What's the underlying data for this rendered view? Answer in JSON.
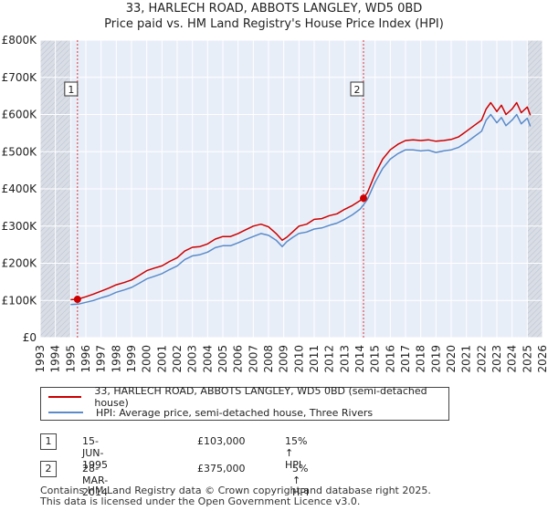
{
  "title_line1": "33, HARLECH ROAD, ABBOTS LANGLEY, WD5 0BD",
  "title_line2": "Price paid vs. HM Land Registry's House Price Index (HPI)",
  "chart_data": {
    "type": "line",
    "title": "33, HARLECH ROAD, ABBOTS LANGLEY, WD5 0BD — Price paid vs. HM Land Registry's House Price Index (HPI)",
    "xlabel": "",
    "ylabel": "",
    "xlim": [
      1993,
      2026
    ],
    "ylim": [
      0,
      800000
    ],
    "x_ticks": [
      1993,
      1994,
      1995,
      1996,
      1997,
      1998,
      1999,
      2000,
      2001,
      2002,
      2003,
      2004,
      2005,
      2006,
      2007,
      2008,
      2009,
      2010,
      2011,
      2012,
      2013,
      2014,
      2015,
      2016,
      2017,
      2018,
      2019,
      2020,
      2021,
      2022,
      2023,
      2024,
      2025,
      2026
    ],
    "y_ticks": [
      0,
      100000,
      200000,
      300000,
      400000,
      500000,
      600000,
      700000,
      800000
    ],
    "y_tick_labels": [
      "£0",
      "£100K",
      "£200K",
      "£300K",
      "£400K",
      "£500K",
      "£600K",
      "£700K",
      "£800K"
    ],
    "grid": true,
    "shaded_ranges": [
      [
        1993,
        1995.0
      ],
      [
        2025.0,
        2026
      ]
    ],
    "series": [
      {
        "name": "33, HARLECH ROAD, ABBOTS LANGLEY, WD5 0BD (semi-detached house)",
        "color": "#cc0000",
        "x": [
          1995.0,
          1995.45,
          1996.0,
          1996.5,
          1997.0,
          1997.5,
          1998.0,
          1998.5,
          1999.0,
          1999.5,
          2000.0,
          2000.5,
          2001.0,
          2001.5,
          2002.0,
          2002.5,
          2003.0,
          2003.5,
          2004.0,
          2004.5,
          2005.0,
          2005.5,
          2006.0,
          2006.5,
          2007.0,
          2007.5,
          2008.0,
          2008.5,
          2008.9,
          2009.2,
          2009.6,
          2010.0,
          2010.5,
          2011.0,
          2011.5,
          2012.0,
          2012.5,
          2013.0,
          2013.5,
          2014.0,
          2014.24,
          2014.5,
          2015.0,
          2015.5,
          2016.0,
          2016.5,
          2017.0,
          2017.5,
          2018.0,
          2018.5,
          2019.0,
          2019.5,
          2020.0,
          2020.5,
          2021.0,
          2021.5,
          2022.0,
          2022.3,
          2022.6,
          2023.0,
          2023.3,
          2023.6,
          2024.0,
          2024.3,
          2024.6,
          2025.0,
          2025.2
        ],
        "values": [
          102000,
          103000,
          110000,
          117000,
          125000,
          133000,
          142000,
          148000,
          155000,
          167000,
          180000,
          187000,
          193000,
          205000,
          215000,
          233000,
          243000,
          245000,
          252000,
          265000,
          272000,
          272000,
          280000,
          290000,
          300000,
          305000,
          298000,
          280000,
          262000,
          270000,
          285000,
          300000,
          305000,
          318000,
          320000,
          328000,
          333000,
          345000,
          355000,
          368000,
          375000,
          390000,
          440000,
          480000,
          505000,
          520000,
          530000,
          532000,
          530000,
          532000,
          528000,
          530000,
          533000,
          540000,
          555000,
          570000,
          585000,
          615000,
          632000,
          608000,
          625000,
          600000,
          615000,
          632000,
          605000,
          620000,
          598000
        ]
      },
      {
        "name": "HPI: Average price, semi-detached house, Three Rivers",
        "color": "#5b8bc9",
        "x": [
          1995.0,
          1995.5,
          1996.0,
          1996.5,
          1997.0,
          1997.5,
          1998.0,
          1998.5,
          1999.0,
          1999.5,
          2000.0,
          2000.5,
          2001.0,
          2001.5,
          2002.0,
          2002.5,
          2003.0,
          2003.5,
          2004.0,
          2004.5,
          2005.0,
          2005.5,
          2006.0,
          2006.5,
          2007.0,
          2007.5,
          2008.0,
          2008.5,
          2008.9,
          2009.2,
          2009.6,
          2010.0,
          2010.5,
          2011.0,
          2011.5,
          2012.0,
          2012.5,
          2013.0,
          2013.5,
          2014.0,
          2014.24,
          2014.5,
          2015.0,
          2015.5,
          2016.0,
          2016.5,
          2017.0,
          2017.5,
          2018.0,
          2018.5,
          2019.0,
          2019.5,
          2020.0,
          2020.5,
          2021.0,
          2021.5,
          2022.0,
          2022.3,
          2022.6,
          2023.0,
          2023.3,
          2023.6,
          2024.0,
          2024.3,
          2024.6,
          2025.0,
          2025.2
        ],
        "values": [
          89000,
          90000,
          95000,
          100000,
          107000,
          113000,
          122000,
          128000,
          135000,
          146000,
          158000,
          165000,
          172000,
          183000,
          193000,
          210000,
          220000,
          223000,
          230000,
          242000,
          247000,
          247000,
          255000,
          264000,
          272000,
          280000,
          275000,
          262000,
          245000,
          258000,
          270000,
          280000,
          284000,
          292000,
          295000,
          302000,
          308000,
          318000,
          330000,
          345000,
          357000,
          372000,
          418000,
          455000,
          480000,
          495000,
          505000,
          505000,
          502000,
          504000,
          498000,
          502000,
          505000,
          512000,
          525000,
          540000,
          555000,
          585000,
          600000,
          578000,
          592000,
          570000,
          585000,
          600000,
          575000,
          590000,
          568000
        ]
      }
    ],
    "annotations": [
      {
        "label": "1",
        "x": 1995.45,
        "value": 103000
      },
      {
        "label": "2",
        "x": 2014.24,
        "value": 375000
      }
    ]
  },
  "legend": [
    {
      "label": "33, HARLECH ROAD, ABBOTS LANGLEY, WD5 0BD (semi-detached house)",
      "color": "#cc0000"
    },
    {
      "label": "HPI: Average price, semi-detached house, Three Rivers",
      "color": "#5b8bc9"
    }
  ],
  "transactions": [
    {
      "num": "1",
      "date": "15-JUN-1995",
      "price": "£103,000",
      "hpi": "15% ↑ HPI"
    },
    {
      "num": "2",
      "date": "28-MAR-2014",
      "price": "£375,000",
      "hpi": "5% ↑ HPI"
    }
  ],
  "footer_line1": "Contains HM Land Registry data © Crown copyright and database right 2025.",
  "footer_line2": "This data is licensed under the Open Government Licence v3.0."
}
